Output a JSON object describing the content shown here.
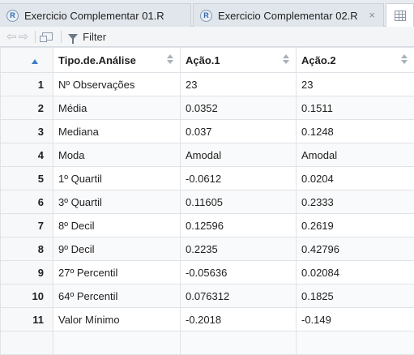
{
  "tabs": [
    {
      "label": "Exercicio Complementar 01.R",
      "icon": "r-file-icon"
    },
    {
      "label": "Exercicio Complementar 02.R",
      "icon": "r-file-icon",
      "close": "×"
    }
  ],
  "r_badge": "R",
  "toolbar": {
    "filter_label": "Filter"
  },
  "table": {
    "columns": [
      "Tipo.de.Análise",
      "Ação.1",
      "Ação.2"
    ],
    "rows": [
      {
        "n": "1",
        "cells": [
          "Nº Observações",
          "23",
          "23"
        ]
      },
      {
        "n": "2",
        "cells": [
          "Média",
          "0.0352",
          "0.1511"
        ]
      },
      {
        "n": "3",
        "cells": [
          "Mediana",
          "0.037",
          "0.1248"
        ]
      },
      {
        "n": "4",
        "cells": [
          "Moda",
          "Amodal",
          "Amodal"
        ]
      },
      {
        "n": "5",
        "cells": [
          "1º Quartil",
          "-0.0612",
          "0.0204"
        ]
      },
      {
        "n": "6",
        "cells": [
          "3º Quartil",
          "0.11605",
          "0.2333"
        ]
      },
      {
        "n": "7",
        "cells": [
          "8º Decil",
          "0.12596",
          "0.2619"
        ]
      },
      {
        "n": "8",
        "cells": [
          "9º Decil",
          "0.2235",
          "0.42796"
        ]
      },
      {
        "n": "9",
        "cells": [
          "27º Percentil",
          "-0.05636",
          "0.02084"
        ]
      },
      {
        "n": "10",
        "cells": [
          "64º Percentil",
          "0.076312",
          "0.1825"
        ]
      },
      {
        "n": "11",
        "cells": [
          "Valor Mínimo",
          "-0.2018",
          "-0.149"
        ]
      },
      {
        "n": "",
        "cells": [
          "",
          "",
          ""
        ]
      }
    ]
  }
}
